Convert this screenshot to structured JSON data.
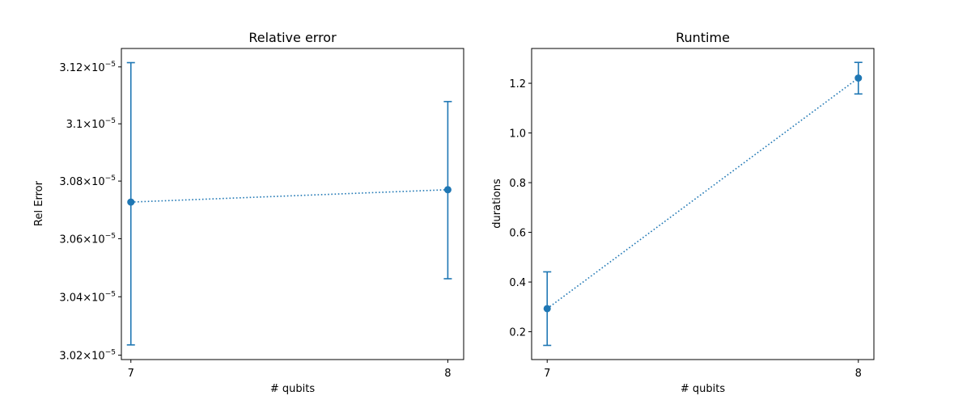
{
  "chart_data": [
    {
      "type": "line",
      "title": "Relative error",
      "xlabel": "# qubits",
      "ylabel": "Rel Error",
      "x": [
        7,
        8
      ],
      "x_ticks": [
        "7",
        "8"
      ],
      "series": [
        {
          "values": [
            3.0727e-05,
            3.077e-05
          ],
          "yerr_lower": [
            3.0235e-05,
            3.0462e-05
          ],
          "yerr_upper": [
            3.1215e-05,
            3.1078e-05
          ]
        }
      ],
      "y_ticks": [
        {
          "value": 3.02e-05,
          "mantissa": "3.02",
          "base": "10",
          "exponent": "−5"
        },
        {
          "value": 3.04e-05,
          "mantissa": "3.04",
          "base": "10",
          "exponent": "−5"
        },
        {
          "value": 3.06e-05,
          "mantissa": "3.06",
          "base": "10",
          "exponent": "−5"
        },
        {
          "value": 3.08e-05,
          "mantissa": "3.08",
          "base": "10",
          "exponent": "−5"
        },
        {
          "value": 3.1e-05,
          "mantissa": "3.1",
          "base": "10",
          "exponent": "−5"
        },
        {
          "value": 3.12e-05,
          "mantissa": "3.12",
          "base": "10",
          "exponent": "−5"
        }
      ],
      "yscale": "log",
      "ylim": [
        3.0185e-05,
        3.1265e-05
      ],
      "xlim": [
        6.97,
        8.05
      ],
      "grid": false,
      "line_style": "dotted",
      "color": "#1f77b4"
    },
    {
      "type": "line",
      "title": "Runtime",
      "xlabel": "# qubits",
      "ylabel": "durations",
      "x": [
        7,
        8
      ],
      "x_ticks": [
        "7",
        "8"
      ],
      "series": [
        {
          "values": [
            0.293,
            1.221
          ],
          "yerr_lower": [
            0.145,
            1.157
          ],
          "yerr_upper": [
            0.441,
            1.284
          ]
        }
      ],
      "y_ticks": [
        {
          "value": 0.2,
          "label": "0.2"
        },
        {
          "value": 0.4,
          "label": "0.4"
        },
        {
          "value": 0.6,
          "label": "0.6"
        },
        {
          "value": 0.8,
          "label": "0.8"
        },
        {
          "value": 1.0,
          "label": "1.0"
        },
        {
          "value": 1.2,
          "label": "1.2"
        }
      ],
      "yscale": "linear",
      "ylim": [
        0.088,
        1.34
      ],
      "xlim": [
        6.95,
        8.05
      ],
      "grid": false,
      "line_style": "dotted",
      "color": "#1f77b4"
    }
  ]
}
